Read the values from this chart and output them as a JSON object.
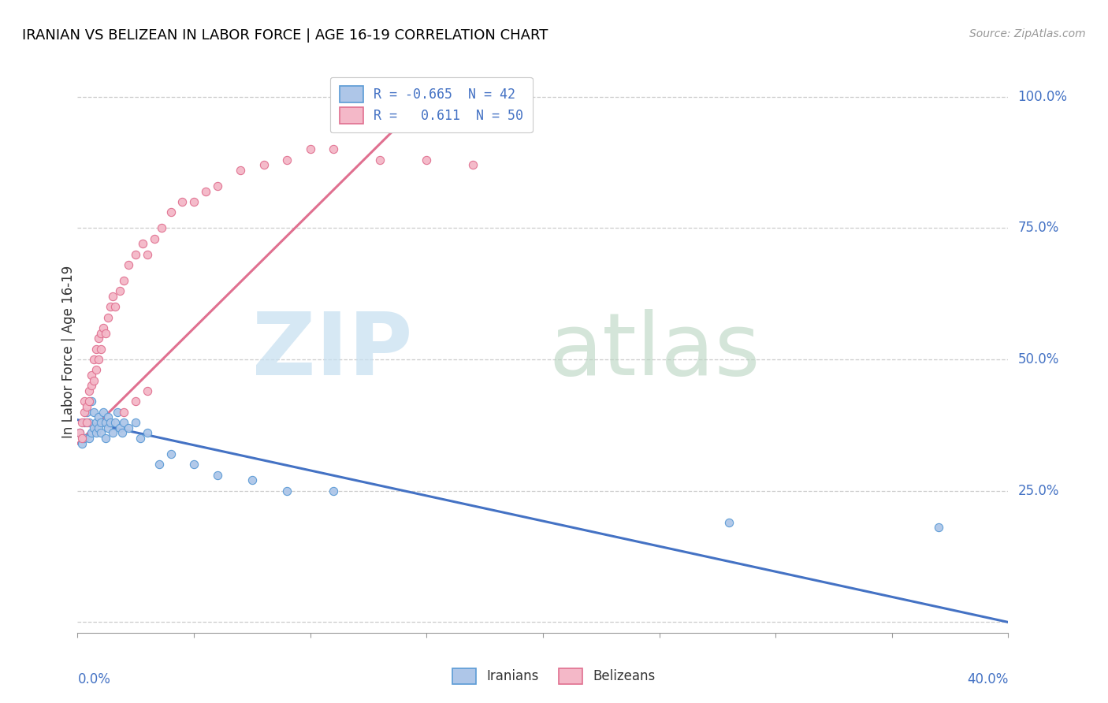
{
  "title": "IRANIAN VS BELIZEAN IN LABOR FORCE | AGE 16-19 CORRELATION CHART",
  "source": "Source: ZipAtlas.com",
  "ylabel": "In Labor Force | Age 16-19",
  "ytick_positions": [
    0.0,
    0.25,
    0.5,
    0.75,
    1.0
  ],
  "xlim": [
    0.0,
    0.4
  ],
  "ylim": [
    -0.02,
    1.05
  ],
  "legend_r1": "R = -0.665  N = 42",
  "legend_r2": "R =   0.611  N = 50",
  "iranian_fill": "#aec6e8",
  "iranian_edge": "#5b9bd5",
  "belizean_fill": "#f4b8c8",
  "belizean_edge": "#e07090",
  "iranian_line_color": "#4472c4",
  "belizean_line_color": "#e07090",
  "iranians_x": [
    0.001,
    0.002,
    0.003,
    0.003,
    0.004,
    0.005,
    0.005,
    0.006,
    0.006,
    0.007,
    0.007,
    0.008,
    0.008,
    0.009,
    0.009,
    0.01,
    0.01,
    0.011,
    0.012,
    0.012,
    0.013,
    0.013,
    0.014,
    0.015,
    0.016,
    0.017,
    0.018,
    0.019,
    0.02,
    0.022,
    0.025,
    0.027,
    0.03,
    0.035,
    0.04,
    0.05,
    0.06,
    0.075,
    0.09,
    0.11,
    0.28,
    0.37
  ],
  "iranians_y": [
    0.36,
    0.34,
    0.38,
    0.35,
    0.4,
    0.38,
    0.35,
    0.42,
    0.36,
    0.4,
    0.37,
    0.38,
    0.36,
    0.37,
    0.39,
    0.38,
    0.36,
    0.4,
    0.38,
    0.35,
    0.37,
    0.39,
    0.38,
    0.36,
    0.38,
    0.4,
    0.37,
    0.36,
    0.38,
    0.37,
    0.38,
    0.35,
    0.36,
    0.3,
    0.32,
    0.3,
    0.28,
    0.27,
    0.25,
    0.25,
    0.19,
    0.18
  ],
  "belizeans_x": [
    0.001,
    0.002,
    0.002,
    0.003,
    0.003,
    0.004,
    0.004,
    0.005,
    0.005,
    0.006,
    0.006,
    0.007,
    0.007,
    0.008,
    0.008,
    0.009,
    0.009,
    0.01,
    0.01,
    0.011,
    0.012,
    0.013,
    0.014,
    0.015,
    0.016,
    0.018,
    0.02,
    0.022,
    0.025,
    0.028,
    0.03,
    0.033,
    0.036,
    0.04,
    0.045,
    0.05,
    0.055,
    0.06,
    0.07,
    0.08,
    0.09,
    0.1,
    0.11,
    0.13,
    0.15,
    0.17,
    0.025,
    0.02,
    0.03,
    0.18
  ],
  "belizeans_y": [
    0.36,
    0.35,
    0.38,
    0.4,
    0.42,
    0.38,
    0.41,
    0.44,
    0.42,
    0.45,
    0.47,
    0.46,
    0.5,
    0.48,
    0.52,
    0.5,
    0.54,
    0.52,
    0.55,
    0.56,
    0.55,
    0.58,
    0.6,
    0.62,
    0.6,
    0.63,
    0.65,
    0.68,
    0.7,
    0.72,
    0.7,
    0.73,
    0.75,
    0.78,
    0.8,
    0.8,
    0.82,
    0.83,
    0.86,
    0.87,
    0.88,
    0.9,
    0.9,
    0.88,
    0.88,
    0.87,
    0.42,
    0.4,
    0.44,
    0.95
  ],
  "iranian_line_x0": 0.0,
  "iranian_line_y0": 0.385,
  "iranian_line_x1": 0.4,
  "iranian_line_y1": 0.0,
  "belizean_line_x0": 0.0,
  "belizean_line_y0": 0.34,
  "belizean_line_x1": 0.155,
  "belizean_line_y1": 1.02
}
